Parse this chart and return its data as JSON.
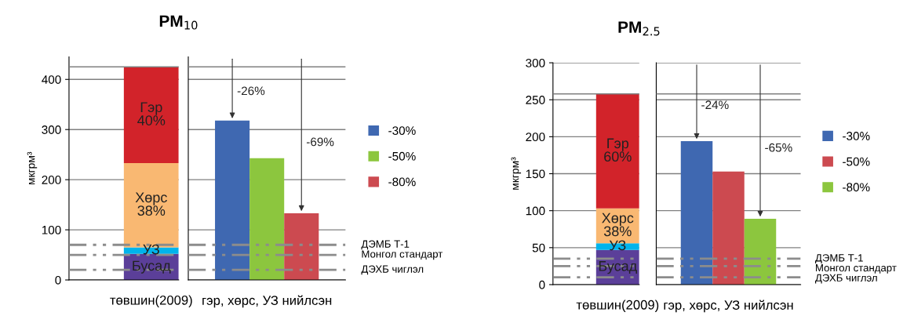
{
  "chart_data": [
    {
      "type": "bar",
      "title": "PM$_{10}$",
      "ylabel": "мкгрм³",
      "categories": [
        "төвшин(2009)"
      ],
      "stacked": true,
      "series": [
        {
          "name": "Бусад",
          "color": "#5b3f99",
          "values": [
            52
          ]
        },
        {
          "name": "УЗ",
          "color": "#00b4ec",
          "values": [
            13
          ]
        },
        {
          "name": "Хөрс",
          "color": "#f9b872",
          "values": [
            168
          ]
        },
        {
          "name": "Гэр",
          "color": "#d2232a",
          "values": [
            192
          ]
        }
      ],
      "annotations": [
        "40%",
        "38%"
      ],
      "ylim": [
        0,
        445
      ],
      "yticks": [
        0,
        100,
        200,
        300,
        400
      ],
      "grid": "y",
      "ref_lines": [
        {
          "axis": "y",
          "value": 425,
          "color": "#808080",
          "line_style": "solid"
        },
        {
          "axis": "y",
          "value": 70,
          "color": "#8c8c8c",
          "line_style": "dashdot"
        },
        {
          "axis": "y",
          "value": 50,
          "color": "#8c8c8c",
          "line_style": "dashdot"
        },
        {
          "axis": "y",
          "value": 20,
          "color": "#8c8c8c",
          "line_style": "dashdot"
        }
      ]
    },
    {
      "type": "bar",
      "categories": [
        "гэр, хөрс, УЗ нийлсэн"
      ],
      "series": [
        {
          "name": "-30%",
          "color": "#3f68b1",
          "values": [
            318
          ]
        },
        {
          "name": "-50%",
          "color": "#8cc63e",
          "values": [
            243
          ]
        },
        {
          "name": "-80%",
          "color": "#cc4a50",
          "values": [
            133
          ]
        }
      ],
      "annotations": [
        "-26%",
        "-69%"
      ],
      "ylim": [
        0,
        445
      ],
      "yticks": [
        0,
        100,
        200,
        300,
        400
      ],
      "grid": "y",
      "tick_labels": "x",
      "legend": "right",
      "ref_lines": [
        {
          "axis": "y",
          "value": 425,
          "color": "#808080",
          "line_style": "solid"
        },
        {
          "axis": "y",
          "value": 70,
          "label": "ДЭМБ Т-1",
          "color": "#8c8c8c",
          "line_style": "dashdot"
        },
        {
          "axis": "y",
          "value": 50,
          "label": "Монгол стандарт",
          "color": "#8c8c8c",
          "line_style": "dashdot"
        },
        {
          "axis": "y",
          "value": 20,
          "label": "ДЭХБ чиглэл",
          "color": "#8c8c8c",
          "line_style": "dashdot"
        }
      ]
    },
    {
      "type": "bar",
      "title": "PM$_{2.5}$",
      "ylabel": "мкгрм³",
      "categories": [
        "төвшин(2009)"
      ],
      "stacked": true,
      "series": [
        {
          "name": "Бусад",
          "color": "#5b3f99",
          "values": [
            47
          ]
        },
        {
          "name": "УЗ",
          "color": "#00b4ec",
          "values": [
            9
          ]
        },
        {
          "name": "Хөрс",
          "color": "#f9b872",
          "values": [
            47
          ]
        },
        {
          "name": "Гэр",
          "color": "#d2232a",
          "values": [
            155
          ]
        }
      ],
      "annotations": [
        "60%",
        "38%"
      ],
      "ylim": [
        0,
        300
      ],
      "yticks": [
        0,
        50,
        100,
        150,
        200,
        250,
        300
      ],
      "grid": "y",
      "ref_lines": [
        {
          "axis": "y",
          "value": 258,
          "color": "#808080",
          "line_style": "solid"
        },
        {
          "axis": "y",
          "value": 35,
          "color": "#8c8c8c",
          "line_style": "dashdot"
        },
        {
          "axis": "y",
          "value": 25,
          "color": "#8c8c8c",
          "line_style": "dashdot"
        },
        {
          "axis": "y",
          "value": 10,
          "color": "#8c8c8c",
          "line_style": "dashdot"
        }
      ]
    },
    {
      "type": "bar",
      "categories": [
        "гэр, хөрс, УЗ нийлсэн"
      ],
      "series": [
        {
          "name": "-30%",
          "color": "#3f68b1",
          "values": [
            194
          ]
        },
        {
          "name": "-50%",
          "color": "#cc4a50",
          "values": [
            153
          ]
        },
        {
          "name": "-80%",
          "color": "#8cc63e",
          "values": [
            89
          ]
        }
      ],
      "annotations": [
        "-24%",
        "-65%"
      ],
      "ylim": [
        0,
        300
      ],
      "yticks": [
        0,
        50,
        100,
        150,
        200,
        250,
        300
      ],
      "grid": "y",
      "tick_labels": "x",
      "legend": "right",
      "ref_lines": [
        {
          "axis": "y",
          "value": 258,
          "color": "#808080",
          "line_style": "solid"
        },
        {
          "axis": "y",
          "value": 35,
          "label": "ДЭМБ Т-1",
          "color": "#8c8c8c",
          "line_style": "dashdot"
        },
        {
          "axis": "y",
          "value": 25,
          "label": "Монгол стандарт",
          "color": "#8c8c8c",
          "line_style": "dashdot"
        },
        {
          "axis": "y",
          "value": 10,
          "label": "ДЭХБ чиглэл",
          "color": "#8c8c8c",
          "line_style": "dashdot"
        }
      ]
    }
  ]
}
